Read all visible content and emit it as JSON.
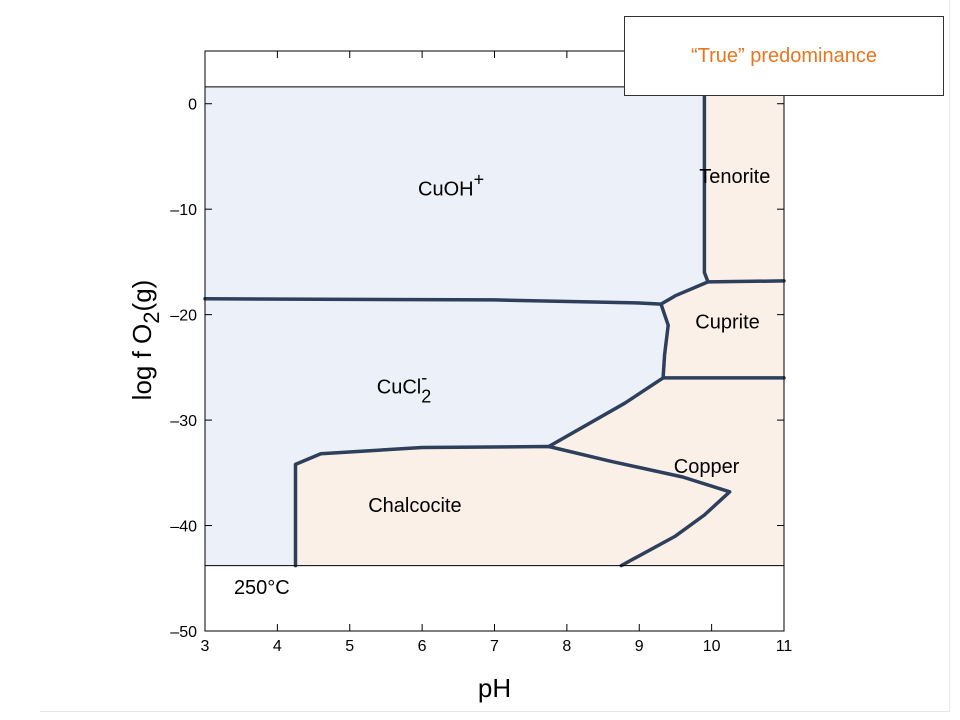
{
  "callout": {
    "text": "“True” predominance",
    "color": "#E8761E"
  },
  "colors": {
    "aqueous_fill": "#ECF0F8",
    "mineral_fill": "#FBF0E8",
    "boundary": "#2E3F5C"
  },
  "chart_data": {
    "type": "predominance-diagram",
    "xlabel": "pH",
    "ylabel_parts": {
      "main": "log f O",
      "sub": "2",
      "tail": "(g)"
    },
    "xlim": [
      3,
      11
    ],
    "ylim": [
      -50,
      5
    ],
    "x_ticks": [
      3,
      4,
      5,
      6,
      7,
      8,
      9,
      10,
      11
    ],
    "y_ticks": [
      0,
      -10,
      -20,
      -30,
      -40,
      -50
    ],
    "y_tick_labels": [
      "0",
      "–10",
      "–20",
      "–30",
      "–40",
      "–50"
    ],
    "temperature_label": "250°C",
    "domain_bounds": {
      "y_top": 1.6,
      "y_bottom": -43.8
    },
    "regions": [
      {
        "name": "CuOH+",
        "label_base": "CuOH",
        "label_sup": "+",
        "label_sub": "",
        "kind": "aqueous",
        "label_pos": [
          6.4,
          -8.7
        ],
        "polygon": [
          [
            3,
            1.6
          ],
          [
            9.9,
            1.6
          ],
          [
            9.9,
            -16.0
          ],
          [
            9.95,
            -16.9
          ],
          [
            9.5,
            -18.2
          ],
          [
            9.3,
            -19.0
          ],
          [
            9.0,
            -18.9
          ],
          [
            7.0,
            -18.6
          ],
          [
            3,
            -18.5
          ]
        ]
      },
      {
        "name": "CuCl2-",
        "label_base": "CuCl",
        "label_sup": "-",
        "label_sub": "2",
        "kind": "aqueous",
        "label_pos": [
          5.75,
          -27.5
        ],
        "polygon": [
          [
            3,
            -18.5
          ],
          [
            7.0,
            -18.6
          ],
          [
            9.0,
            -18.9
          ],
          [
            9.3,
            -19.0
          ],
          [
            9.4,
            -21.0
          ],
          [
            9.35,
            -23.8
          ],
          [
            9.33,
            -26.0
          ],
          [
            8.8,
            -28.4
          ],
          [
            7.75,
            -32.5
          ],
          [
            6.0,
            -32.6
          ],
          [
            4.6,
            -33.2
          ],
          [
            4.25,
            -34.2
          ],
          [
            4.25,
            -43.8
          ],
          [
            3,
            -43.8
          ]
        ]
      },
      {
        "name": "Tenorite",
        "label_base": "Tenorite",
        "label_sup": "",
        "label_sub": "",
        "kind": "mineral",
        "label_pos": [
          10.32,
          -7.5
        ],
        "polygon": [
          [
            9.9,
            1.6
          ],
          [
            11,
            1.6
          ],
          [
            11,
            -16.8
          ],
          [
            9.95,
            -16.9
          ],
          [
            9.9,
            -16.0
          ]
        ]
      },
      {
        "name": "Cuprite",
        "label_base": "Cuprite",
        "label_sup": "",
        "label_sub": "",
        "kind": "mineral",
        "label_pos": [
          10.22,
          -21.3
        ],
        "polygon": [
          [
            9.95,
            -16.9
          ],
          [
            11,
            -16.8
          ],
          [
            11,
            -26.0
          ],
          [
            9.33,
            -26.0
          ],
          [
            9.35,
            -23.8
          ],
          [
            9.4,
            -21.0
          ],
          [
            9.3,
            -19.0
          ],
          [
            9.5,
            -18.2
          ]
        ]
      },
      {
        "name": "Copper",
        "label_base": "Copper",
        "label_sup": "",
        "label_sub": "",
        "kind": "mineral",
        "label_pos": [
          9.93,
          -35.0
        ],
        "polygon": [
          [
            9.33,
            -26.0
          ],
          [
            11,
            -26.0
          ],
          [
            11,
            -43.8
          ],
          [
            8.75,
            -43.8
          ],
          [
            9.5,
            -41.0
          ],
          [
            9.9,
            -39.0
          ],
          [
            10.25,
            -36.8
          ],
          [
            9.6,
            -35.4
          ],
          [
            8.6,
            -33.9
          ],
          [
            7.75,
            -32.5
          ],
          [
            8.8,
            -28.4
          ]
        ]
      },
      {
        "name": "Chalcocite",
        "label_base": "Chalcocite",
        "label_sup": "",
        "label_sub": "",
        "kind": "mineral",
        "label_pos": [
          5.9,
          -38.7
        ],
        "polygon": [
          [
            4.25,
            -34.2
          ],
          [
            4.6,
            -33.2
          ],
          [
            6.0,
            -32.6
          ],
          [
            7.75,
            -32.5
          ],
          [
            8.6,
            -33.9
          ],
          [
            9.6,
            -35.4
          ],
          [
            10.25,
            -36.8
          ],
          [
            9.9,
            -39.0
          ],
          [
            9.5,
            -41.0
          ],
          [
            8.75,
            -43.8
          ],
          [
            4.25,
            -43.8
          ]
        ]
      }
    ],
    "boundaries": [
      [
        [
          3,
          -18.5
        ],
        [
          7.0,
          -18.6
        ],
        [
          9.0,
          -18.9
        ],
        [
          9.3,
          -19.0
        ],
        [
          9.5,
          -18.2
        ],
        [
          9.95,
          -16.9
        ],
        [
          11,
          -16.8
        ]
      ],
      [
        [
          9.9,
          1.6
        ],
        [
          9.9,
          -16.0
        ],
        [
          9.95,
          -16.9
        ]
      ],
      [
        [
          9.3,
          -19.0
        ],
        [
          9.4,
          -21.0
        ],
        [
          9.35,
          -23.8
        ],
        [
          9.33,
          -26.0
        ],
        [
          11,
          -26.0
        ]
      ],
      [
        [
          9.33,
          -26.0
        ],
        [
          8.8,
          -28.4
        ],
        [
          7.75,
          -32.5
        ]
      ],
      [
        [
          4.25,
          -43.8
        ],
        [
          4.25,
          -34.2
        ],
        [
          4.6,
          -33.2
        ],
        [
          6.0,
          -32.6
        ],
        [
          7.75,
          -32.5
        ],
        [
          8.6,
          -33.9
        ],
        [
          9.6,
          -35.4
        ],
        [
          10.25,
          -36.8
        ],
        [
          9.9,
          -39.0
        ],
        [
          9.5,
          -41.0
        ],
        [
          8.75,
          -43.8
        ]
      ]
    ]
  }
}
